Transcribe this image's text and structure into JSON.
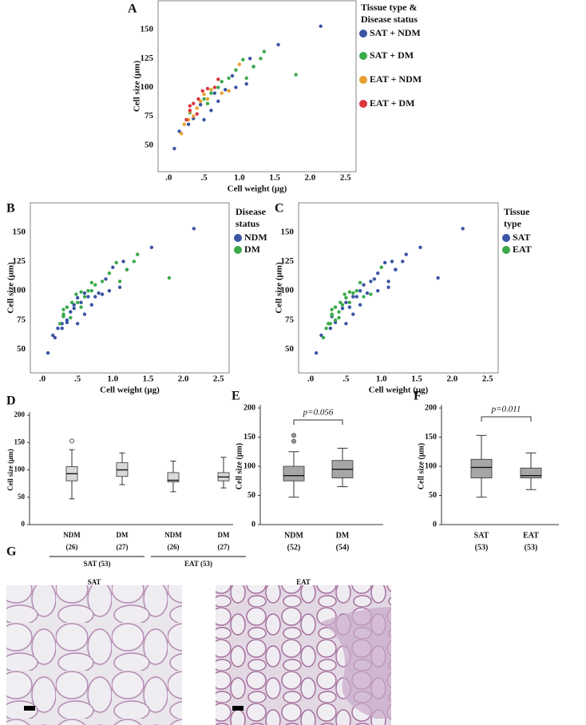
{
  "chart_data": [
    {
      "type": "scatter",
      "panel": "A",
      "x_label": "Cell weight (μg)",
      "y_label": "Cell size (μm)",
      "legend_title": [
        "Tissue type &",
        "Disease status"
      ],
      "xlim": [
        -0.15,
        2.65
      ],
      "ylim": [
        27,
        175
      ],
      "xticks": [
        {
          "value": 0,
          "label": ".0"
        },
        {
          "value": 0.5,
          "label": ".5"
        },
        {
          "value": 1,
          "label": "1.0"
        },
        1.5,
        {
          "value": 2,
          "label": "2.0"
        },
        2.5
      ],
      "yticks": [
        50,
        75,
        100,
        125,
        150
      ],
      "series": [
        {
          "name": "SAT + NDM",
          "color": "#3b54a3",
          "x": [
            0.08,
            0.15,
            0.28,
            0.35,
            0.5,
            0.45,
            0.6,
            0.7,
            0.8,
            0.9,
            1.1,
            1.15,
            1.2,
            1.55,
            2.15,
            0.65,
            0.95
          ],
          "values": [
            47,
            62,
            68,
            73,
            72,
            85,
            80,
            88,
            98,
            110,
            103,
            125,
            118,
            137,
            153,
            95,
            100
          ]
        },
        {
          "name": "SAT + DM",
          "color": "#3aaa4a",
          "x": [
            0.3,
            0.5,
            0.6,
            0.75,
            0.85,
            0.95,
            1.05,
            1.2,
            1.3,
            1.35,
            1.8,
            1.1,
            0.7,
            0.55
          ],
          "values": [
            78,
            90,
            95,
            105,
            108,
            115,
            124,
            118,
            125,
            131,
            111,
            108,
            100,
            86
          ]
        },
        {
          "name": "EAT + NDM",
          "color": "#e8a030",
          "x": [
            0.18,
            0.22,
            0.28,
            0.3,
            0.35,
            0.4,
            0.45,
            0.5,
            0.6,
            0.75,
            0.85,
            1.0,
            0.55
          ],
          "values": [
            60,
            68,
            72,
            79,
            75,
            82,
            88,
            94,
            98,
            95,
            97,
            120,
            90
          ]
        },
        {
          "name": "EAT + DM",
          "color": "#d9363e",
          "x": [
            0.25,
            0.3,
            0.35,
            0.42,
            0.48,
            0.55,
            0.65,
            0.7,
            0.4,
            0.3
          ],
          "values": [
            72,
            80,
            86,
            90,
            97,
            99,
            100,
            107,
            77,
            84
          ]
        }
      ]
    },
    {
      "type": "scatter",
      "panel": "B",
      "x_label": "Cell weight (μg)",
      "y_label": "Cell size (μm)",
      "legend_title": [
        "Disease",
        "status"
      ],
      "xlim": [
        -0.17,
        2.65
      ],
      "ylim": [
        30,
        175
      ],
      "xticks": [
        {
          "value": 0,
          "label": ".0"
        },
        {
          "value": 0.5,
          "label": ".5"
        },
        {
          "value": 1,
          "label": "1.0"
        },
        1.5,
        {
          "value": 2,
          "label": "2.0"
        },
        2.5
      ],
      "yticks": [
        50,
        75,
        100,
        125,
        150
      ],
      "series": [
        {
          "name": "NDM",
          "color": "#3b54a3",
          "x": [
            0.08,
            0.15,
            0.28,
            0.35,
            0.5,
            0.45,
            0.6,
            0.7,
            0.8,
            0.9,
            1.1,
            1.15,
            1.2,
            1.55,
            2.15,
            0.65,
            0.95,
            0.18,
            0.22,
            0.28,
            0.3,
            0.35,
            0.4,
            0.45,
            0.5,
            0.6,
            0.75,
            0.85,
            1.0,
            0.55
          ],
          "values": [
            47,
            62,
            68,
            73,
            72,
            85,
            80,
            88,
            98,
            110,
            103,
            125,
            118,
            137,
            153,
            95,
            100,
            60,
            68,
            72,
            79,
            75,
            82,
            88,
            94,
            98,
            95,
            97,
            120,
            90
          ]
        },
        {
          "name": "DM",
          "color": "#3aaa4a",
          "x": [
            0.3,
            0.5,
            0.6,
            0.75,
            0.85,
            0.95,
            1.05,
            1.2,
            1.3,
            1.35,
            1.8,
            1.1,
            0.7,
            0.55,
            0.25,
            0.3,
            0.35,
            0.42,
            0.48,
            0.55,
            0.65,
            0.7,
            0.4,
            0.3
          ],
          "values": [
            78,
            90,
            95,
            105,
            108,
            115,
            124,
            118,
            125,
            131,
            111,
            108,
            100,
            86,
            72,
            80,
            86,
            90,
            97,
            99,
            100,
            107,
            77,
            84
          ]
        }
      ]
    },
    {
      "type": "scatter",
      "panel": "C",
      "x_label": "Cell weight (μg)",
      "y_label": "Cell size (μm)",
      "legend_title": [
        "Tissue",
        "type"
      ],
      "xlim": [
        -0.17,
        2.65
      ],
      "ylim": [
        30,
        175
      ],
      "xticks": [
        {
          "value": 0,
          "label": ".0"
        },
        {
          "value": 0.5,
          "label": ".5"
        },
        {
          "value": 1,
          "label": "1.0"
        },
        1.5,
        {
          "value": 2,
          "label": "2.0"
        },
        2.5
      ],
      "yticks": [
        50,
        75,
        100,
        125,
        150
      ],
      "series": [
        {
          "name": "SAT",
          "color": "#3b54a3",
          "x": [
            0.08,
            0.15,
            0.28,
            0.35,
            0.5,
            0.45,
            0.6,
            0.7,
            0.8,
            0.9,
            1.1,
            1.15,
            1.2,
            1.55,
            2.15,
            0.65,
            0.95,
            0.3,
            0.5,
            0.6,
            0.75,
            0.85,
            0.95,
            1.05,
            1.2,
            1.3,
            1.35,
            1.8,
            1.1,
            0.7,
            0.55
          ],
          "values": [
            47,
            62,
            68,
            73,
            72,
            85,
            80,
            88,
            98,
            110,
            103,
            125,
            118,
            137,
            153,
            95,
            100,
            78,
            90,
            95,
            105,
            108,
            115,
            124,
            118,
            125,
            131,
            111,
            108,
            100,
            86
          ]
        },
        {
          "name": "EAT",
          "color": "#3aaa4a",
          "x": [
            0.18,
            0.22,
            0.28,
            0.3,
            0.35,
            0.4,
            0.45,
            0.5,
            0.6,
            0.75,
            0.85,
            1.0,
            0.55,
            0.25,
            0.3,
            0.35,
            0.42,
            0.48,
            0.55,
            0.65,
            0.7,
            0.4,
            0.3
          ],
          "values": [
            60,
            68,
            72,
            79,
            75,
            82,
            88,
            94,
            98,
            95,
            97,
            120,
            90,
            72,
            80,
            86,
            90,
            97,
            99,
            100,
            107,
            77,
            84
          ]
        }
      ]
    },
    {
      "type": "box",
      "panel": "D",
      "y_label": "Cell size (μm)",
      "color": "#d9d9d9",
      "categories": [
        "NDM",
        "DM",
        "NDM",
        "DM"
      ],
      "counts": [
        "(26)",
        "(27)",
        "(26)",
        "(27)"
      ],
      "groups": [
        "SAT (53)",
        "EAT (53)"
      ],
      "ylim": [
        0,
        200
      ],
      "yticks": [
        0,
        50,
        100,
        150,
        200
      ],
      "boxes": [
        {
          "min": 47,
          "q1": 80,
          "median": 93,
          "q3": 106,
          "max": 137,
          "outliers": [
            153
          ]
        },
        {
          "min": 73,
          "q1": 88,
          "median": 100,
          "q3": 113,
          "max": 131,
          "outliers": []
        },
        {
          "min": 60,
          "q1": 78,
          "median": 81,
          "q3": 95,
          "max": 116,
          "outliers": []
        },
        {
          "min": 67,
          "q1": 80,
          "median": 87,
          "q3": 95,
          "max": 123,
          "outliers": []
        }
      ]
    },
    {
      "type": "box",
      "panel": "E",
      "y_label": "Cell size (μm)",
      "color": "#a6a6a6",
      "categories": [
        "NDM",
        "DM"
      ],
      "counts": [
        "(52)",
        "(54)"
      ],
      "annotation": "p=0.056",
      "ylim": [
        0,
        200
      ],
      "yticks": [
        0,
        50,
        100,
        150,
        200
      ],
      "boxes": [
        {
          "min": 47,
          "q1": 75,
          "median": 84,
          "q3": 100,
          "max": 125,
          "outliers": [
            143,
            153
          ]
        },
        {
          "min": 65,
          "q1": 80,
          "median": 95,
          "q3": 110,
          "max": 131,
          "outliers": []
        }
      ]
    },
    {
      "type": "box",
      "panel": "F",
      "y_label": "Cell size (μm)",
      "color": "#a6a6a6",
      "categories": [
        "SAT",
        "EAT"
      ],
      "counts": [
        "(53)",
        "(53)"
      ],
      "annotation": "p=0.011",
      "ylim": [
        0,
        200
      ],
      "yticks": [
        0,
        50,
        100,
        150,
        200
      ],
      "boxes": [
        {
          "min": 47,
          "q1": 80,
          "median": 98,
          "q3": 112,
          "max": 153,
          "outliers": []
        },
        {
          "min": 60,
          "q1": 80,
          "median": 84,
          "q3": 97,
          "max": 123,
          "outliers": []
        }
      ]
    }
  ],
  "figure_g": {
    "panel": "G",
    "images": [
      {
        "title": "SAT"
      },
      {
        "title": "EAT"
      }
    ]
  }
}
